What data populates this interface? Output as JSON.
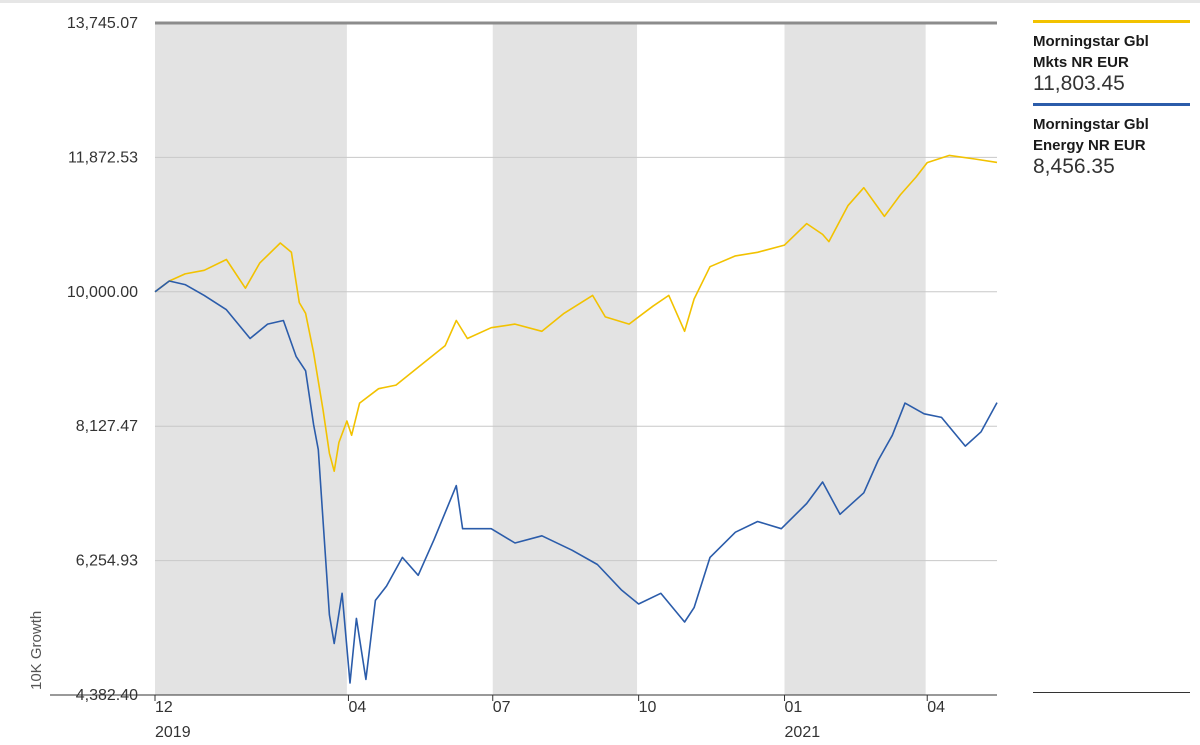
{
  "chart_data": {
    "type": "line",
    "ylabel": "10K Growth",
    "y_ticks": [
      "13,745.07",
      "11,872.53",
      "10,000.00",
      "8,127.47",
      "6,254.93",
      "4,382.40"
    ],
    "y_tick_values": [
      13745.07,
      11872.53,
      10000.0,
      8127.47,
      6254.93,
      4382.4
    ],
    "ylim": [
      4382.4,
      13745.07
    ],
    "x_ticks": [
      {
        "month": "12",
        "year": "2019",
        "date": "2019-12-01"
      },
      {
        "month": "04",
        "year": "",
        "date": "2020-04-01"
      },
      {
        "month": "07",
        "year": "",
        "date": "2020-07-01"
      },
      {
        "month": "10",
        "year": "",
        "date": "2020-10-01"
      },
      {
        "month": "01",
        "year": "2021",
        "date": "2021-01-01"
      },
      {
        "month": "04",
        "year": "",
        "date": "2021-04-01"
      }
    ],
    "xlim": [
      "2019-12-01",
      "2021-05-15"
    ],
    "shaded_periods": [
      [
        "2019-12-01",
        "2020-03-31"
      ],
      [
        "2020-07-01",
        "2020-09-30"
      ],
      [
        "2021-01-01",
        "2021-03-31"
      ]
    ],
    "grid": true,
    "legend_position": "right",
    "series": [
      {
        "name": "Morningstar Gbl Mkts NR EUR",
        "last_value": "11,803.45",
        "color": "#f2c200",
        "points": [
          [
            "2019-12-01",
            10000
          ],
          [
            "2019-12-10",
            10150
          ],
          [
            "2019-12-20",
            10250
          ],
          [
            "2020-01-01",
            10300
          ],
          [
            "2020-01-15",
            10450
          ],
          [
            "2020-01-27",
            10050
          ],
          [
            "2020-02-05",
            10400
          ],
          [
            "2020-02-18",
            10680
          ],
          [
            "2020-02-25",
            10550
          ],
          [
            "2020-03-01",
            9850
          ],
          [
            "2020-03-05",
            9700
          ],
          [
            "2020-03-10",
            9150
          ],
          [
            "2020-03-16",
            8350
          ],
          [
            "2020-03-20",
            7750
          ],
          [
            "2020-03-23",
            7500
          ],
          [
            "2020-03-26",
            7900
          ],
          [
            "2020-03-31",
            8200
          ],
          [
            "2020-04-03",
            8000
          ],
          [
            "2020-04-08",
            8450
          ],
          [
            "2020-04-20",
            8650
          ],
          [
            "2020-05-01",
            8700
          ],
          [
            "2020-05-15",
            8950
          ],
          [
            "2020-06-01",
            9250
          ],
          [
            "2020-06-08",
            9600
          ],
          [
            "2020-06-15",
            9350
          ],
          [
            "2020-06-30",
            9500
          ],
          [
            "2020-07-15",
            9550
          ],
          [
            "2020-08-01",
            9450
          ],
          [
            "2020-08-15",
            9700
          ],
          [
            "2020-09-02",
            9950
          ],
          [
            "2020-09-10",
            9650
          ],
          [
            "2020-09-25",
            9550
          ],
          [
            "2020-10-10",
            9800
          ],
          [
            "2020-10-20",
            9950
          ],
          [
            "2020-10-30",
            9450
          ],
          [
            "2020-11-05",
            9900
          ],
          [
            "2020-11-15",
            10350
          ],
          [
            "2020-12-01",
            10500
          ],
          [
            "2020-12-15",
            10550
          ],
          [
            "2021-01-01",
            10650
          ],
          [
            "2021-01-15",
            10950
          ],
          [
            "2021-01-25",
            10800
          ],
          [
            "2021-01-29",
            10700
          ],
          [
            "2021-02-10",
            11200
          ],
          [
            "2021-02-20",
            11450
          ],
          [
            "2021-03-05",
            11050
          ],
          [
            "2021-03-15",
            11350
          ],
          [
            "2021-03-25",
            11600
          ],
          [
            "2021-04-01",
            11800
          ],
          [
            "2021-04-15",
            11900
          ],
          [
            "2021-05-01",
            11850
          ],
          [
            "2021-05-15",
            11803.45
          ]
        ]
      },
      {
        "name": "Morningstar Gbl Energy NR EUR",
        "last_value": "8,456.35",
        "color": "#2b5caa",
        "points": [
          [
            "2019-12-01",
            10000
          ],
          [
            "2019-12-10",
            10150
          ],
          [
            "2019-12-20",
            10100
          ],
          [
            "2020-01-01",
            9950
          ],
          [
            "2020-01-15",
            9750
          ],
          [
            "2020-01-30",
            9350
          ],
          [
            "2020-02-10",
            9550
          ],
          [
            "2020-02-20",
            9600
          ],
          [
            "2020-02-28",
            9100
          ],
          [
            "2020-03-05",
            8900
          ],
          [
            "2020-03-10",
            8150
          ],
          [
            "2020-03-13",
            7800
          ],
          [
            "2020-03-16",
            6800
          ],
          [
            "2020-03-20",
            5500
          ],
          [
            "2020-03-23",
            5100
          ],
          [
            "2020-03-28",
            5800
          ],
          [
            "2020-04-02",
            4550
          ],
          [
            "2020-04-06",
            5450
          ],
          [
            "2020-04-12",
            4600
          ],
          [
            "2020-04-18",
            5700
          ],
          [
            "2020-04-25",
            5900
          ],
          [
            "2020-05-05",
            6300
          ],
          [
            "2020-05-15",
            6050
          ],
          [
            "2020-05-25",
            6550
          ],
          [
            "2020-06-08",
            7300
          ],
          [
            "2020-06-12",
            6700
          ],
          [
            "2020-06-30",
            6700
          ],
          [
            "2020-07-15",
            6500
          ],
          [
            "2020-08-01",
            6600
          ],
          [
            "2020-08-20",
            6400
          ],
          [
            "2020-09-05",
            6200
          ],
          [
            "2020-09-20",
            5850
          ],
          [
            "2020-10-01",
            5650
          ],
          [
            "2020-10-15",
            5800
          ],
          [
            "2020-10-30",
            5400
          ],
          [
            "2020-11-05",
            5600
          ],
          [
            "2020-11-15",
            6300
          ],
          [
            "2020-12-01",
            6650
          ],
          [
            "2020-12-15",
            6800
          ],
          [
            "2020-12-30",
            6700
          ],
          [
            "2021-01-15",
            7050
          ],
          [
            "2021-01-25",
            7350
          ],
          [
            "2021-02-05",
            6900
          ],
          [
            "2021-02-20",
            7200
          ],
          [
            "2021-03-01",
            7650
          ],
          [
            "2021-03-10",
            8000
          ],
          [
            "2021-03-18",
            8450
          ],
          [
            "2021-03-30",
            8300
          ],
          [
            "2021-04-10",
            8250
          ],
          [
            "2021-04-25",
            7850
          ],
          [
            "2021-05-05",
            8050
          ],
          [
            "2021-05-15",
            8456.35
          ]
        ]
      }
    ]
  }
}
